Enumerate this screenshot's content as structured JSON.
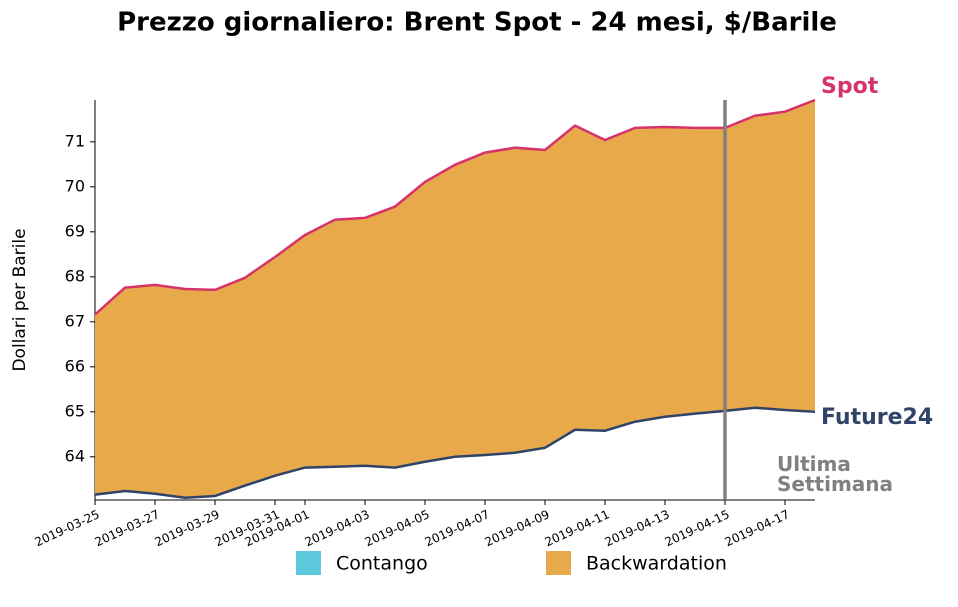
{
  "chart_data": {
    "type": "area-between",
    "title": "Prezzo giornaliero: Brent Spot - 24 mesi, $/Barile",
    "y_label": "Dollari per Barile",
    "x": [
      "2019-03-25",
      "2019-03-26",
      "2019-03-27",
      "2019-03-28",
      "2019-03-29",
      "2019-03-30",
      "2019-03-31",
      "2019-04-01",
      "2019-04-02",
      "2019-04-03",
      "2019-04-04",
      "2019-04-05",
      "2019-04-06",
      "2019-04-07",
      "2019-04-08",
      "2019-04-09",
      "2019-04-10",
      "2019-04-11",
      "2019-04-12",
      "2019-04-13",
      "2019-04-14",
      "2019-04-15",
      "2019-04-16",
      "2019-04-17",
      "2019-04-18"
    ],
    "series": [
      {
        "name": "Spot",
        "color": "#d6336c",
        "values": [
          67.16,
          67.76,
          67.82,
          67.73,
          67.71,
          67.98,
          68.44,
          68.93,
          69.27,
          69.31,
          69.56,
          70.11,
          70.49,
          70.76,
          70.87,
          70.82,
          71.36,
          71.04,
          71.31,
          71.33,
          71.31,
          71.31,
          71.58,
          71.67,
          71.93
        ]
      },
      {
        "name": "Future24",
        "color": "#2f4468",
        "values": [
          63.16,
          63.24,
          63.18,
          63.09,
          63.13,
          63.36,
          63.58,
          63.76,
          63.78,
          63.8,
          63.76,
          63.89,
          64.0,
          64.04,
          64.09,
          64.2,
          64.6,
          64.58,
          64.78,
          64.89,
          64.96,
          65.02,
          65.09,
          65.04,
          65.0
        ]
      }
    ],
    "legend": [
      {
        "name": "Contango",
        "color": "#5bc8dc"
      },
      {
        "name": "Backwardation",
        "color": "#e8a94b"
      }
    ],
    "xlim": [
      "2019-03-25",
      "2019-04-18"
    ],
    "xticks": [
      "2019-03-25",
      "2019-03-27",
      "2019-03-29",
      "2019-03-31",
      "2019-04-01",
      "2019-04-03",
      "2019-04-05",
      "2019-04-07",
      "2019-04-09",
      "2019-04-11",
      "2019-04-13",
      "2019-04-15",
      "2019-04-17"
    ],
    "ylim": [
      63.04,
      71.93
    ],
    "yticks": [
      64,
      65,
      66,
      67,
      68,
      69,
      70,
      71
    ],
    "annotation": {
      "x": "2019-04-15",
      "text": "Ultima Settimana",
      "color": "#808080"
    }
  }
}
